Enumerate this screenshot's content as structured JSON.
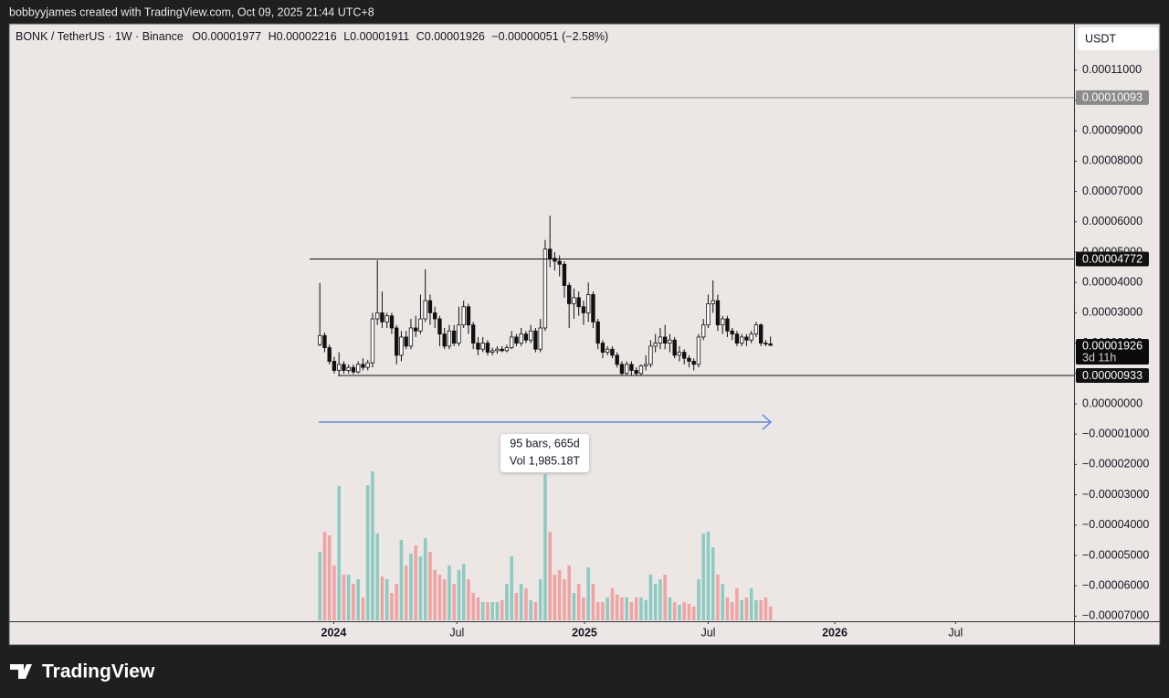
{
  "header": {
    "credit": "bobbyyjames created with TradingView.com, Oct 09, 2025 21:44 UTC+8"
  },
  "footer": {
    "brand": "TradingView"
  },
  "chart_data": {
    "type": "candlestick",
    "title": "BONK / TetherUS · 1W · Binance",
    "ohlc_legend": [
      {
        "label": "O",
        "value": "0.00001977"
      },
      {
        "label": "H",
        "value": "0.00002216"
      },
      {
        "label": "L",
        "value": "0.00001911"
      },
      {
        "label": "C",
        "value": "0.00001926"
      }
    ],
    "change": "−0.00000051 (−2.58%)",
    "currency": "USDT",
    "up_color": "#ffffff",
    "down_color": "#111111",
    "volume_up_color": "#8ccbc2",
    "volume_down_color": "#f0a3a3",
    "grid": false,
    "open": [
      1.95e-05,
      2.25e-05,
      1.85e-05,
      1.4e-05,
      1.1e-05,
      1.3e-05,
      1.1e-05,
      1.2e-05,
      1.05e-05,
      1.3e-05,
      1.2e-05,
      1.35e-05,
      2.8e-05,
      3e-05,
      2.7e-05,
      2.9e-05,
      2.5e-05,
      1.6e-05,
      2.2e-05,
      1.9e-05,
      2.5e-05,
      2.4e-05,
      2.8e-05,
      3.4e-05,
      3e-05,
      2.8e-05,
      2.3e-05,
      1.9e-05,
      2.4e-05,
      2e-05,
      2.6e-05,
      3.2e-05,
      2.6e-05,
      2e-05,
      1.8e-05,
      2e-05,
      1.7e-05,
      1.75e-05,
      1.8e-05,
      1.75e-05,
      1.85e-05,
      2.2e-05,
      2e-05,
      2.3e-05,
      2.1e-05,
      2.4e-05,
      1.8e-05,
      2.5e-05,
      5.1e-05,
      4.8e-05,
      4.7e-05,
      4.6e-05,
      3.9e-05,
      3.3e-05,
      3.5e-05,
      3.2e-05,
      3e-05,
      3.6e-05,
      2.7e-05,
      2e-05,
      1.7e-05,
      1.8e-05,
      1.6e-05,
      1.3e-05,
      1e-05,
      1.3e-05,
      1.1e-05,
      1e-05,
      1.25e-05,
      1.3e-05,
      1.9e-05,
      2e-05,
      2.2e-05,
      2e-05,
      2.1e-05,
      1.6e-05,
      1.7e-05,
      1.5e-05,
      1.4e-05,
      1.3e-05,
      2.2e-05,
      2.6e-05,
      3.3e-05,
      3.4e-05,
      2.6e-05,
      2.8e-05,
      2.4e-05,
      2.3e-05,
      2e-05,
      2.2e-05,
      2.1e-05,
      2.3e-05,
      2.6e-05,
      2e-05,
      1.977e-05
    ],
    "high": [
      3.98e-05,
      2.35e-05,
      1.95e-05,
      1.55e-05,
      1.7e-05,
      1.4e-05,
      1.3e-05,
      1.3e-05,
      1.4e-05,
      1.5e-05,
      1.45e-05,
      3e-05,
      4.73e-05,
      3.7e-05,
      3e-05,
      3e-05,
      2.6e-05,
      2.4e-05,
      2.4e-05,
      2.8e-05,
      2.9e-05,
      3.6e-05,
      4.43e-05,
      3.6e-05,
      3.2e-05,
      2.9e-05,
      2.5e-05,
      2.6e-05,
      2.6e-05,
      3.2e-05,
      3.4e-05,
      3.3e-05,
      2.7e-05,
      2.2e-05,
      2.2e-05,
      2.1e-05,
      1.85e-05,
      1.9e-05,
      1.9e-05,
      1.95e-05,
      2.4e-05,
      2.3e-05,
      2.5e-05,
      2.4e-05,
      2.6e-05,
      2.5e-05,
      2.8e-05,
      5.4e-05,
      6.2e-05,
      5e-05,
      4.9e-05,
      4.7e-05,
      4e-05,
      3.8e-05,
      3.7e-05,
      3.4e-05,
      4e-05,
      3.7e-05,
      2.8e-05,
      2.1e-05,
      1.9e-05,
      1.9e-05,
      1.7e-05,
      1.4e-05,
      1.4e-05,
      1.4e-05,
      1.2e-05,
      1.3e-05,
      1.6e-05,
      2.1e-05,
      2.3e-05,
      2.5e-05,
      2.6e-05,
      2.3e-05,
      2.2e-05,
      1.9e-05,
      1.8e-05,
      1.6e-05,
      1.5e-05,
      2.3e-05,
      2.8e-05,
      3.6e-05,
      4.07e-05,
      3.6e-05,
      2.9e-05,
      2.9e-05,
      2.5e-05,
      2.4e-05,
      2.3e-05,
      2.3e-05,
      2.4e-05,
      2.7e-05,
      2.65e-05,
      2.1e-05,
      2.216e-05
    ],
    "low": [
      1.9e-05,
      1.7e-05,
      1.3e-05,
      1e-05,
      9.3e-06,
      1e-05,
      1e-05,
      9.8e-06,
      1e-05,
      1.1e-05,
      1.1e-05,
      1.2e-05,
      2.6e-05,
      2.5e-05,
      2.5e-05,
      2.3e-05,
      1.3e-05,
      1.4e-05,
      1.8e-05,
      1.8e-05,
      2.2e-05,
      2.3e-05,
      2.7e-05,
      2.6e-05,
      2.5e-05,
      1.9e-05,
      1.8e-05,
      1.8e-05,
      1.9e-05,
      1.9e-05,
      2.5e-05,
      2.3e-05,
      1.8e-05,
      1.6e-05,
      1.7e-05,
      1.6e-05,
      1.6e-05,
      1.65e-05,
      1.7e-05,
      1.7e-05,
      1.8e-05,
      1.9e-05,
      1.9e-05,
      2e-05,
      2e-05,
      1.7e-05,
      1.7e-05,
      2.4e-05,
      4.5e-05,
      4.4e-05,
      4.2e-05,
      3.5e-05,
      2.5e-05,
      2.8e-05,
      2.9e-05,
      2.6e-05,
      2.7e-05,
      2.5e-05,
      1.8e-05,
      1.5e-05,
      1.6e-05,
      1.5e-05,
      1.2e-05,
      9.5e-06,
      9.5e-06,
      9.3e-06,
      9.3e-06,
      9.3e-06,
      1.1e-05,
      1.2e-05,
      1.7e-05,
      1.8e-05,
      1.8e-05,
      1.7e-05,
      1.5e-05,
      1.4e-05,
      1.3e-05,
      1.2e-05,
      1.1e-05,
      1.2e-05,
      2.1e-05,
      2.5e-05,
      3e-05,
      2.4e-05,
      2.3e-05,
      2.2e-05,
      2.1e-05,
      1.9e-05,
      1.9e-05,
      1.9e-05,
      2e-05,
      2.2e-05,
      1.9e-05,
      1.9e-05,
      1.911e-05
    ],
    "close": [
      2.25e-05,
      1.85e-05,
      1.4e-05,
      1.1e-05,
      1.3e-05,
      1.1e-05,
      1.2e-05,
      1.05e-05,
      1.3e-05,
      1.2e-05,
      1.35e-05,
      2.8e-05,
      3e-05,
      2.7e-05,
      2.9e-05,
      2.5e-05,
      1.6e-05,
      2.2e-05,
      1.9e-05,
      2.5e-05,
      2.4e-05,
      2.8e-05,
      3.4e-05,
      3e-05,
      2.8e-05,
      2.3e-05,
      1.9e-05,
      2.4e-05,
      2e-05,
      2.6e-05,
      3.2e-05,
      2.6e-05,
      2e-05,
      1.8e-05,
      2e-05,
      1.7e-05,
      1.75e-05,
      1.8e-05,
      1.75e-05,
      1.85e-05,
      2.2e-05,
      2e-05,
      2.3e-05,
      2.1e-05,
      2.4e-05,
      1.8e-05,
      2.5e-05,
      5.1e-05,
      4.8e-05,
      4.7e-05,
      4.6e-05,
      3.9e-05,
      3.3e-05,
      3.5e-05,
      3.2e-05,
      3e-05,
      3.6e-05,
      2.7e-05,
      2e-05,
      1.7e-05,
      1.8e-05,
      1.6e-05,
      1.3e-05,
      1e-05,
      1.3e-05,
      1.1e-05,
      1e-05,
      1.25e-05,
      1.3e-05,
      1.9e-05,
      2e-05,
      2.2e-05,
      2e-05,
      2.1e-05,
      1.6e-05,
      1.7e-05,
      1.5e-05,
      1.4e-05,
      1.3e-05,
      2.2e-05,
      2.6e-05,
      3.3e-05,
      3.4e-05,
      2.6e-05,
      2.8e-05,
      2.4e-05,
      2.3e-05,
      2e-05,
      2.2e-05,
      2.1e-05,
      2.3e-05,
      2.6e-05,
      2e-05,
      1.977e-05,
      1.926e-05
    ],
    "volume": [
      41.3,
      53.4,
      51.2,
      33,
      80.9,
      27.5,
      27.5,
      22,
      24.8,
      13.8,
      81.4,
      89.7,
      52.3,
      26.4,
      24.8,
      16.5,
      22,
      48.4,
      33,
      40.2,
      45.1,
      38.5,
      49.5,
      41.3,
      30.3,
      27.5,
      24.8,
      33,
      22,
      30.3,
      34.1,
      24.8,
      16.5,
      13.8,
      11,
      11,
      11,
      11,
      12.1,
      22,
      38.5,
      16.5,
      22,
      19.3,
      12.1,
      11,
      24.8,
      88,
      53.4,
      27.5,
      30.3,
      24.8,
      33,
      16.5,
      22,
      13.8,
      31.9,
      22,
      11,
      11,
      13.8,
      19.3,
      15.4,
      13.8,
      13.8,
      11,
      13.8,
      13.8,
      12.1,
      27.5,
      22,
      24.8,
      27.5,
      13.8,
      11,
      9.4,
      11,
      9.9,
      8.3,
      24.8,
      52.3,
      53.4,
      44,
      27.5,
      22,
      13.8,
      11,
      19.3,
      12.1,
      13.8,
      19.3,
      12.1,
      12.1,
      13.8,
      8.3
    ],
    "xlim": [
      -64.8,
      157.3
    ],
    "xticks": [
      {
        "value": 2.9,
        "label": "2024"
      },
      {
        "value": 28.6,
        "label": "Jul"
      },
      {
        "value": 55.2,
        "label": "2025"
      },
      {
        "value": 81,
        "label": "Jul"
      },
      {
        "value": 107.4,
        "label": "2026"
      },
      {
        "value": 132.6,
        "label": "Jul"
      }
    ],
    "ylim": [
      -7.17e-05,
      0.0001253
    ],
    "yticks": [
      {
        "value": 0.00011,
        "label": "0.00011000"
      },
      {
        "value": 0.0001,
        "label": "0.00010000"
      },
      {
        "value": 9e-05,
        "label": "0.00009000"
      },
      {
        "value": 8e-05,
        "label": "0.00008000"
      },
      {
        "value": 7e-05,
        "label": "0.00007000"
      },
      {
        "value": 6e-05,
        "label": "0.00006000"
      },
      {
        "value": 5e-05,
        "label": "0.00005000"
      },
      {
        "value": 4e-05,
        "label": "0.00004000"
      },
      {
        "value": 3e-05,
        "label": "0.00003000"
      },
      {
        "value": 2e-05,
        "label": "0.00002000"
      },
      {
        "value": 1e-05,
        "label": "0.00001000"
      },
      {
        "value": 0,
        "label": "0.00000000"
      },
      {
        "value": -1e-05,
        "label": "−0.00001000"
      },
      {
        "value": -2e-05,
        "label": "−0.00002000"
      },
      {
        "value": -3e-05,
        "label": "−0.00003000"
      },
      {
        "value": -4e-05,
        "label": "−0.00004000"
      },
      {
        "value": -5e-05,
        "label": "−0.00005000"
      },
      {
        "value": -6e-05,
        "label": "−0.00006000"
      },
      {
        "value": -7e-05,
        "label": "−0.00007000"
      }
    ],
    "levels": [
      {
        "value": 4.772e-05,
        "label": "0.00004772",
        "color": "#111111"
      },
      {
        "value": 9.33e-06,
        "label": "0.00000933",
        "color": "#111111"
      },
      {
        "value": 0.00010093,
        "label": "0.00010093",
        "color": "#8a8a8a"
      }
    ],
    "last_price": {
      "value": 1.926e-05,
      "label": "0.00001926",
      "countdown": "3d 11h"
    },
    "measure": {
      "bars_label": "95 bars, 665d",
      "volume_label": "Vol 1,985.18T"
    }
  }
}
